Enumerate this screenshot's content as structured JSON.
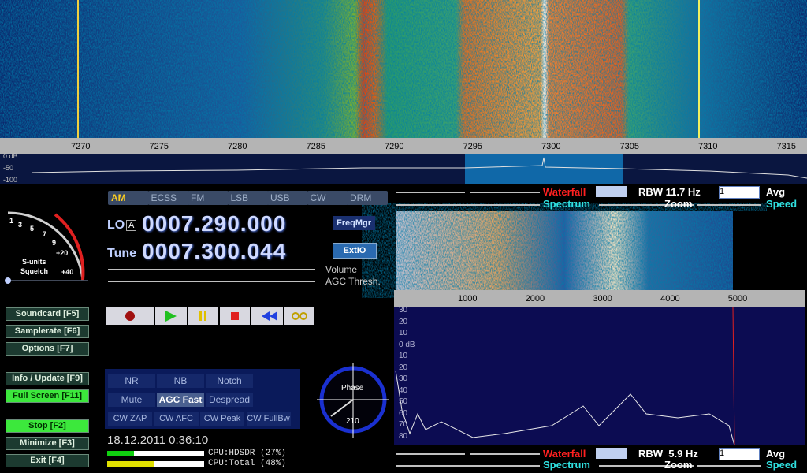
{
  "rf_axis": {
    "ticks": [
      7270,
      7275,
      7280,
      7285,
      7290,
      7295,
      7300,
      7305,
      7310,
      7315
    ]
  },
  "rf_db": {
    "ticks": [
      "0 dB",
      "-50",
      "-100"
    ]
  },
  "modes": [
    "AM",
    "ECSS",
    "FM",
    "LSB",
    "USB",
    "CW",
    "DRM"
  ],
  "lo": {
    "label": "LO",
    "badge": "A",
    "frequency": "0007.290.000"
  },
  "tune": {
    "label": "Tune",
    "frequency": "0007.300.044"
  },
  "smeter": {
    "scale": [
      "1",
      "3",
      "5",
      "7",
      "9",
      "+20",
      "+40"
    ],
    "units": "S-units",
    "squelch": "Squelch"
  },
  "buttons": [
    "Soundcard [F5]",
    "Samplerate [F6]",
    "Options [F7]",
    "Info / Update [F9]",
    "Full Screen [F11]",
    "Stop [F2]",
    "Minimize [F3]",
    "Exit [F4]"
  ],
  "freqmgr": "FreqMgr",
  "extio": "ExtIO",
  "sliders": [
    "Volume",
    "AGC Thresh."
  ],
  "dsp": [
    "NR",
    "NB",
    "Notch",
    "Mute",
    "AGC Fast",
    "Despread",
    "CW ZAP",
    "CW AFC",
    "CW Peak",
    "CW FullBw"
  ],
  "datetime": "18.12.2011 0:36:10",
  "cpu": [
    "CPU:HDSDR (27%)",
    "CPU:Total (48%)"
  ],
  "phase": {
    "label": "Phase",
    "value": "210"
  },
  "rf_controls": {
    "waterfall": "Waterfall",
    "rbw": "RBW 11.7 Hz",
    "avg_value": "1",
    "avg": "Avg",
    "spectrum": "Spectrum",
    "zoom": "Zoom",
    "speed": "Speed"
  },
  "af_controls": {
    "waterfall": "Waterfall",
    "rbw": "RBW  5.9 Hz",
    "avg_value": "1",
    "avg": "Avg",
    "spectrum": "Spectrum",
    "zoom": "Zoom",
    "speed": "Speed"
  },
  "af_axis": {
    "ticks": [
      1000,
      2000,
      3000,
      4000,
      5000
    ]
  },
  "af_db": {
    "ticks": [
      "30",
      "20",
      "10",
      "0 dB",
      "10",
      "20",
      "30",
      "40",
      "50",
      "60",
      "70",
      "80"
    ]
  }
}
